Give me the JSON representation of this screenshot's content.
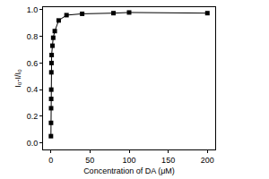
{
  "chart_data": {
    "type": "line",
    "x_label": "Concentration of DA (μM)",
    "y_label": "I₀-I/I₀",
    "x": [
      0.1,
      0.2,
      0.3,
      0.4,
      0.5,
      0.6,
      0.8,
      1,
      2,
      3,
      5,
      10,
      20,
      40,
      80,
      100,
      200
    ],
    "values": [
      0.05,
      0.15,
      0.26,
      0.33,
      0.4,
      0.53,
      0.6,
      0.66,
      0.73,
      0.79,
      0.84,
      0.92,
      0.96,
      0.97,
      0.975,
      0.98,
      0.975
    ],
    "color": "#000000",
    "marker": "square",
    "line_style": "solid",
    "xlim": [
      -10,
      210
    ],
    "xticks": [
      0,
      50,
      100,
      150,
      200
    ],
    "ylim": [
      -0.05,
      1.02
    ],
    "yticks": [
      {
        "value": 0,
        "label": "0.0"
      },
      0.2,
      0.4,
      0.6,
      0.8,
      {
        "value": 1,
        "label": "1.0"
      }
    ],
    "grid": false
  }
}
